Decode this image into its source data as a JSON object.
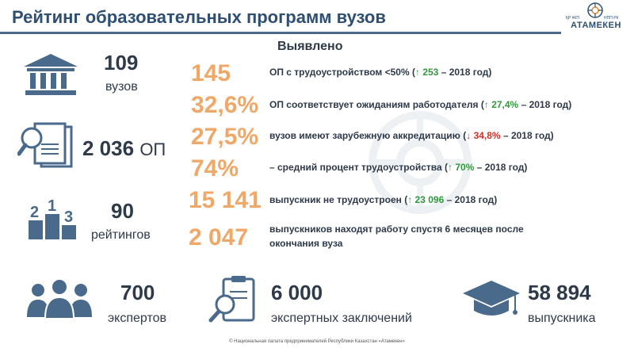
{
  "header": {
    "title": "Рейтинг образовательных программ вузов",
    "logo": {
      "left_text": "ҚР ҰКП",
      "right_text": "НПП РК",
      "name": "АТАМЕКЕН"
    }
  },
  "left_stats": [
    {
      "number": "109",
      "label": "вузов",
      "icon": "university-building-icon"
    },
    {
      "number": "2 036",
      "unit": "ОП",
      "icon": "documents-magnifier-icon"
    },
    {
      "number": "90",
      "label": "рейтингов",
      "icon": "podium-icon",
      "podium": {
        "first": "1",
        "second": "2",
        "third": "3"
      }
    }
  ],
  "findings": {
    "heading": "Выявлено",
    "items": [
      {
        "value": "145",
        "pre": "ОП с трудоустройством <50% (",
        "arrow": "↑",
        "change": "253",
        "post": " – 2018 год)",
        "dir": "up"
      },
      {
        "value": "32,6%",
        "pre": "ОП соответствует ожиданиям работодателя (",
        "arrow": "↑",
        "change": "27,4%",
        "post": " – 2018 год)",
        "dir": "up"
      },
      {
        "value": "27,5%",
        "pre": "вузов имеют зарубежную аккредитацию (",
        "arrow": "↓",
        "change": "34,8%",
        "post": " – 2018 год)",
        "dir": "down"
      },
      {
        "value": "74%",
        "pre": "– средний процент трудоустройства (",
        "arrow": "↑",
        "change": "70%",
        "post": "  – 2018 год)",
        "dir": "up"
      },
      {
        "value": "15 141",
        "pre": "выпускник не трудоустроен (",
        "arrow": "↑",
        "change": "23 096",
        "post": " – 2018 год)",
        "dir": "up"
      },
      {
        "value": "2 047",
        "line1": "выпускников находят работу спустя 6 месяцев после",
        "line2": "окончания вуза"
      }
    ]
  },
  "bottom_stats": [
    {
      "number": "700",
      "label": "экспертов",
      "icon": "experts-group-icon"
    },
    {
      "number": "6 000",
      "label": "экспертных заключений",
      "icon": "clipboard-magnifier-icon"
    },
    {
      "number": "58 894",
      "label": "выпускника",
      "icon": "graduation-cap-icon"
    }
  ],
  "footer": "© Национальная палата предпринимателей Республики Казахстан «Атамекен»",
  "colors": {
    "title": "#2e4f72",
    "icon": "#4a6a8c",
    "accent_orange": "#f0a868",
    "up": "#2e9a3a",
    "down": "#d03226",
    "text": "#2e3a4a"
  }
}
